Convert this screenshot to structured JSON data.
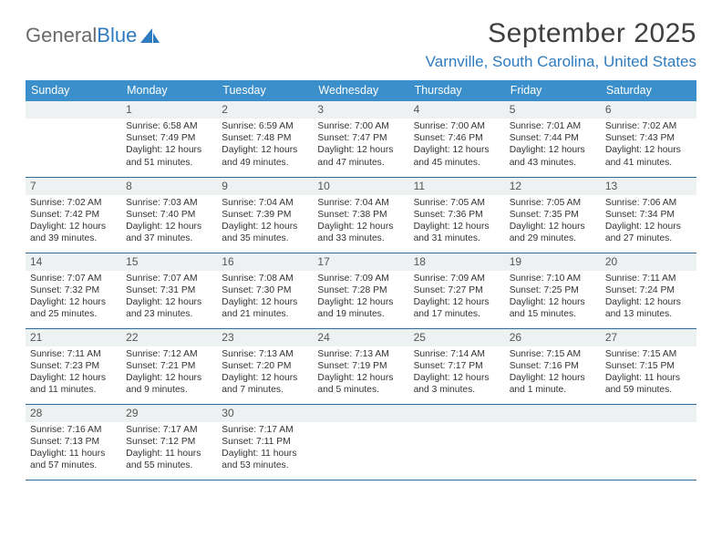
{
  "brand": {
    "word1": "General",
    "word2": "Blue"
  },
  "title": "September 2025",
  "location": "Varnville, South Carolina, United States",
  "colors": {
    "header_bg": "#3b8fca",
    "header_text": "#ffffff",
    "row_border": "#2f6a9e",
    "daynum_bg": "#eef1f2",
    "brand_gray": "#6a6a6a",
    "brand_blue": "#2f7bbf",
    "text": "#333333",
    "page_bg": "#ffffff"
  },
  "typography": {
    "month_title_size": 30,
    "location_size": 17,
    "weekday_size": 12.5,
    "daynum_size": 12,
    "body_size": 10.3
  },
  "weekdays": [
    "Sunday",
    "Monday",
    "Tuesday",
    "Wednesday",
    "Thursday",
    "Friday",
    "Saturday"
  ],
  "weeks": [
    [
      null,
      {
        "n": "1",
        "sr": "6:58 AM",
        "ss": "7:49 PM",
        "dl": "12 hours and 51 minutes."
      },
      {
        "n": "2",
        "sr": "6:59 AM",
        "ss": "7:48 PM",
        "dl": "12 hours and 49 minutes."
      },
      {
        "n": "3",
        "sr": "7:00 AM",
        "ss": "7:47 PM",
        "dl": "12 hours and 47 minutes."
      },
      {
        "n": "4",
        "sr": "7:00 AM",
        "ss": "7:46 PM",
        "dl": "12 hours and 45 minutes."
      },
      {
        "n": "5",
        "sr": "7:01 AM",
        "ss": "7:44 PM",
        "dl": "12 hours and 43 minutes."
      },
      {
        "n": "6",
        "sr": "7:02 AM",
        "ss": "7:43 PM",
        "dl": "12 hours and 41 minutes."
      }
    ],
    [
      {
        "n": "7",
        "sr": "7:02 AM",
        "ss": "7:42 PM",
        "dl": "12 hours and 39 minutes."
      },
      {
        "n": "8",
        "sr": "7:03 AM",
        "ss": "7:40 PM",
        "dl": "12 hours and 37 minutes."
      },
      {
        "n": "9",
        "sr": "7:04 AM",
        "ss": "7:39 PM",
        "dl": "12 hours and 35 minutes."
      },
      {
        "n": "10",
        "sr": "7:04 AM",
        "ss": "7:38 PM",
        "dl": "12 hours and 33 minutes."
      },
      {
        "n": "11",
        "sr": "7:05 AM",
        "ss": "7:36 PM",
        "dl": "12 hours and 31 minutes."
      },
      {
        "n": "12",
        "sr": "7:05 AM",
        "ss": "7:35 PM",
        "dl": "12 hours and 29 minutes."
      },
      {
        "n": "13",
        "sr": "7:06 AM",
        "ss": "7:34 PM",
        "dl": "12 hours and 27 minutes."
      }
    ],
    [
      {
        "n": "14",
        "sr": "7:07 AM",
        "ss": "7:32 PM",
        "dl": "12 hours and 25 minutes."
      },
      {
        "n": "15",
        "sr": "7:07 AM",
        "ss": "7:31 PM",
        "dl": "12 hours and 23 minutes."
      },
      {
        "n": "16",
        "sr": "7:08 AM",
        "ss": "7:30 PM",
        "dl": "12 hours and 21 minutes."
      },
      {
        "n": "17",
        "sr": "7:09 AM",
        "ss": "7:28 PM",
        "dl": "12 hours and 19 minutes."
      },
      {
        "n": "18",
        "sr": "7:09 AM",
        "ss": "7:27 PM",
        "dl": "12 hours and 17 minutes."
      },
      {
        "n": "19",
        "sr": "7:10 AM",
        "ss": "7:25 PM",
        "dl": "12 hours and 15 minutes."
      },
      {
        "n": "20",
        "sr": "7:11 AM",
        "ss": "7:24 PM",
        "dl": "12 hours and 13 minutes."
      }
    ],
    [
      {
        "n": "21",
        "sr": "7:11 AM",
        "ss": "7:23 PM",
        "dl": "12 hours and 11 minutes."
      },
      {
        "n": "22",
        "sr": "7:12 AM",
        "ss": "7:21 PM",
        "dl": "12 hours and 9 minutes."
      },
      {
        "n": "23",
        "sr": "7:13 AM",
        "ss": "7:20 PM",
        "dl": "12 hours and 7 minutes."
      },
      {
        "n": "24",
        "sr": "7:13 AM",
        "ss": "7:19 PM",
        "dl": "12 hours and 5 minutes."
      },
      {
        "n": "25",
        "sr": "7:14 AM",
        "ss": "7:17 PM",
        "dl": "12 hours and 3 minutes."
      },
      {
        "n": "26",
        "sr": "7:15 AM",
        "ss": "7:16 PM",
        "dl": "12 hours and 1 minute."
      },
      {
        "n": "27",
        "sr": "7:15 AM",
        "ss": "7:15 PM",
        "dl": "11 hours and 59 minutes."
      }
    ],
    [
      {
        "n": "28",
        "sr": "7:16 AM",
        "ss": "7:13 PM",
        "dl": "11 hours and 57 minutes."
      },
      {
        "n": "29",
        "sr": "7:17 AM",
        "ss": "7:12 PM",
        "dl": "11 hours and 55 minutes."
      },
      {
        "n": "30",
        "sr": "7:17 AM",
        "ss": "7:11 PM",
        "dl": "11 hours and 53 minutes."
      },
      null,
      null,
      null,
      null
    ]
  ],
  "labels": {
    "sunrise": "Sunrise:",
    "sunset": "Sunset:",
    "daylight": "Daylight:"
  }
}
